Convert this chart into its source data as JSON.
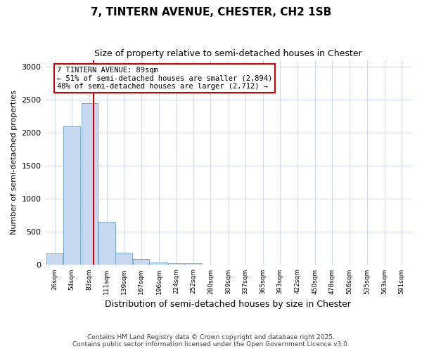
{
  "title": "7, TINTERN AVENUE, CHESTER, CH2 1SB",
  "subtitle": "Size of property relative to semi-detached houses in Chester",
  "xlabel": "Distribution of semi-detached houses by size in Chester",
  "ylabel": "Number of semi-detached properties",
  "property_size_sqm": 89,
  "property_label": "7 TINTERN AVENUE: 89sqm",
  "smaller_pct": 51,
  "smaller_count": 2894,
  "larger_pct": 48,
  "larger_count": 2712,
  "bar_color": "#c8d8f0",
  "bar_edge_color": "#7aaad0",
  "marker_color": "#cc0000",
  "annotation_box_color": "#cc0000",
  "categories": [
    "26sqm",
    "54sqm",
    "83sqm",
    "111sqm",
    "139sqm",
    "167sqm",
    "196sqm",
    "224sqm",
    "252sqm",
    "280sqm",
    "309sqm",
    "337sqm",
    "365sqm",
    "393sqm",
    "422sqm",
    "450sqm",
    "478sqm",
    "506sqm",
    "535sqm",
    "563sqm",
    "591sqm"
  ],
  "bin_centers": [
    26,
    54,
    83,
    111,
    139,
    167,
    196,
    224,
    252,
    280,
    309,
    337,
    365,
    393,
    422,
    450,
    478,
    506,
    535,
    563,
    591
  ],
  "bin_width": 28,
  "values": [
    175,
    2100,
    2450,
    650,
    190,
    90,
    35,
    30,
    25,
    5,
    3,
    2,
    1,
    1,
    0,
    0,
    0,
    0,
    0,
    0,
    0
  ],
  "ylim": [
    0,
    3100
  ],
  "yticks": [
    0,
    500,
    1000,
    1500,
    2000,
    2500,
    3000
  ],
  "footer_line1": "Contains HM Land Registry data © Crown copyright and database right 2025.",
  "footer_line2": "Contains public sector information licensed under the Open Government Licence v3.0.",
  "background_color": "#ffffff",
  "plot_bg_color": "#ffffff",
  "grid_color": "#d0daf0"
}
